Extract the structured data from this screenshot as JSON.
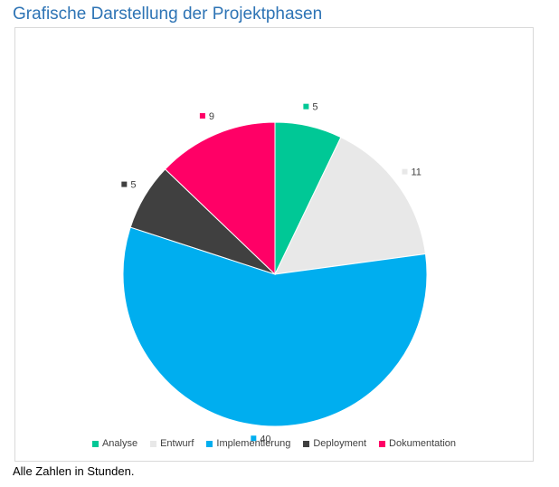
{
  "heading": "Grafische Darstellung der Projektphasen",
  "caption": "Alle Zahlen in Stunden.",
  "chart_data": {
    "type": "pie",
    "categories": [
      "Analyse",
      "Entwurf",
      "Implementierung",
      "Deployment",
      "Dokumentation"
    ],
    "values": [
      5,
      11,
      40,
      5,
      9
    ],
    "colors": [
      "#00c896",
      "#e8e8e8",
      "#00aeef",
      "#404040",
      "#ff0066"
    ],
    "data_labels": [
      "5",
      "11",
      "40",
      "5",
      "9"
    ],
    "legend_position": "bottom",
    "start_angle": "12 o'clock",
    "direction": "clockwise"
  }
}
